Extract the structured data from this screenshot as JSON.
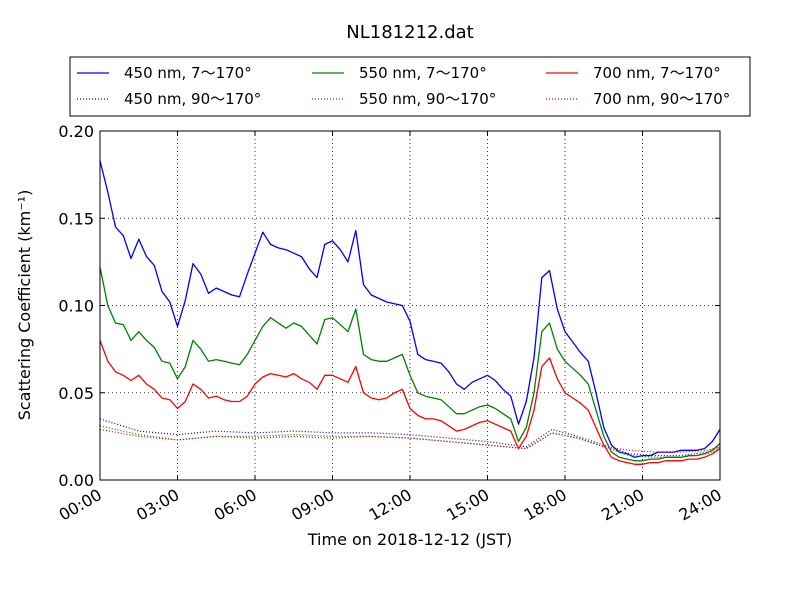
{
  "chart_data": {
    "type": "line",
    "title": "NL181212.dat",
    "xlabel": "Time on 2018-12-12 (JST)",
    "ylabel": "Scattering Coefficient (km⁻¹)",
    "xlim": [
      0,
      24
    ],
    "ylim": [
      0,
      0.2
    ],
    "grid": true,
    "legend_position": "top (outside plot), 3 columns",
    "x_tick_labels": [
      "00:00",
      "03:00",
      "06:00",
      "09:00",
      "12:00",
      "15:00",
      "18:00",
      "21:00",
      "24:00"
    ],
    "y_tick_labels": [
      "0.00",
      "0.05",
      "0.10",
      "0.15",
      "0.20"
    ],
    "series": [
      {
        "name": "450 nm, 7～170°",
        "color": "#0000ff",
        "style": "solid",
        "x": [
          0,
          0.3,
          0.6,
          0.9,
          1.2,
          1.5,
          1.8,
          2.1,
          2.4,
          2.7,
          3.0,
          3.3,
          3.6,
          3.9,
          4.2,
          4.5,
          4.8,
          5.1,
          5.4,
          5.7,
          6.0,
          6.3,
          6.6,
          6.9,
          7.2,
          7.5,
          7.8,
          8.1,
          8.4,
          8.7,
          9.0,
          9.3,
          9.6,
          9.9,
          10.2,
          10.5,
          10.8,
          11.1,
          11.4,
          11.7,
          12.0,
          12.3,
          12.6,
          12.9,
          13.2,
          13.5,
          13.8,
          14.1,
          14.4,
          14.7,
          15.0,
          15.3,
          15.6,
          15.9,
          16.2,
          16.5,
          16.8,
          17.1,
          17.4,
          17.7,
          18.0,
          18.3,
          18.6,
          18.9,
          19.2,
          19.5,
          19.8,
          20.1,
          20.4,
          20.7,
          21.0,
          21.3,
          21.6,
          21.9,
          22.2,
          22.5,
          22.8,
          23.1,
          23.4,
          23.7,
          24.0
        ],
        "y": [
          0.183,
          0.165,
          0.145,
          0.14,
          0.127,
          0.138,
          0.128,
          0.123,
          0.108,
          0.102,
          0.088,
          0.103,
          0.124,
          0.118,
          0.107,
          0.11,
          0.108,
          0.106,
          0.105,
          0.118,
          0.13,
          0.142,
          0.135,
          0.133,
          0.132,
          0.13,
          0.128,
          0.121,
          0.116,
          0.135,
          0.137,
          0.132,
          0.125,
          0.143,
          0.112,
          0.106,
          0.104,
          0.102,
          0.101,
          0.1,
          0.091,
          0.072,
          0.069,
          0.068,
          0.067,
          0.062,
          0.055,
          0.052,
          0.056,
          0.058,
          0.06,
          0.057,
          0.052,
          0.048,
          0.032,
          0.045,
          0.07,
          0.116,
          0.12,
          0.098,
          0.085,
          0.079,
          0.073,
          0.068,
          0.05,
          0.03,
          0.02,
          0.016,
          0.015,
          0.013,
          0.014,
          0.014,
          0.016,
          0.016,
          0.016,
          0.017,
          0.017,
          0.017,
          0.018,
          0.022,
          0.029
        ]
      },
      {
        "name": "450 nm, 90～170°",
        "color": "#0000ff",
        "style": "dotted",
        "x": [
          0,
          1.5,
          3.0,
          4.5,
          6.0,
          7.5,
          9.0,
          10.5,
          12.0,
          13.5,
          15.0,
          16.5,
          17.5,
          18.5,
          19.5,
          20.5,
          21.5,
          22.5,
          23.5,
          24.0
        ],
        "y": [
          0.035,
          0.028,
          0.026,
          0.028,
          0.027,
          0.028,
          0.027,
          0.027,
          0.026,
          0.024,
          0.022,
          0.019,
          0.029,
          0.025,
          0.02,
          0.015,
          0.014,
          0.014,
          0.016,
          0.019
        ]
      },
      {
        "name": "550 nm, 7～170°",
        "color": "#008000",
        "style": "solid",
        "x": [
          0,
          0.3,
          0.6,
          0.9,
          1.2,
          1.5,
          1.8,
          2.1,
          2.4,
          2.7,
          3.0,
          3.3,
          3.6,
          3.9,
          4.2,
          4.5,
          4.8,
          5.1,
          5.4,
          5.7,
          6.0,
          6.3,
          6.6,
          6.9,
          7.2,
          7.5,
          7.8,
          8.1,
          8.4,
          8.7,
          9.0,
          9.3,
          9.6,
          9.9,
          10.2,
          10.5,
          10.8,
          11.1,
          11.4,
          11.7,
          12.0,
          12.3,
          12.6,
          12.9,
          13.2,
          13.5,
          13.8,
          14.1,
          14.4,
          14.7,
          15.0,
          15.3,
          15.6,
          15.9,
          16.2,
          16.5,
          16.8,
          17.1,
          17.4,
          17.7,
          18.0,
          18.3,
          18.6,
          18.9,
          19.2,
          19.5,
          19.8,
          20.1,
          20.4,
          20.7,
          21.0,
          21.3,
          21.6,
          21.9,
          22.2,
          22.5,
          22.8,
          23.1,
          23.4,
          23.7,
          24.0
        ],
        "y": [
          0.122,
          0.1,
          0.09,
          0.089,
          0.08,
          0.085,
          0.08,
          0.076,
          0.068,
          0.067,
          0.058,
          0.065,
          0.08,
          0.075,
          0.068,
          0.069,
          0.068,
          0.067,
          0.066,
          0.072,
          0.08,
          0.088,
          0.093,
          0.09,
          0.087,
          0.09,
          0.088,
          0.083,
          0.078,
          0.092,
          0.093,
          0.089,
          0.085,
          0.098,
          0.072,
          0.069,
          0.068,
          0.068,
          0.07,
          0.072,
          0.06,
          0.05,
          0.048,
          0.047,
          0.046,
          0.042,
          0.038,
          0.038,
          0.04,
          0.042,
          0.043,
          0.041,
          0.038,
          0.035,
          0.022,
          0.03,
          0.05,
          0.085,
          0.09,
          0.075,
          0.068,
          0.064,
          0.06,
          0.055,
          0.04,
          0.025,
          0.016,
          0.013,
          0.012,
          0.011,
          0.011,
          0.012,
          0.012,
          0.013,
          0.013,
          0.013,
          0.014,
          0.014,
          0.015,
          0.017,
          0.021
        ]
      },
      {
        "name": "550 nm, 90～170°",
        "color": "#008000",
        "style": "dotted",
        "x": [
          0,
          1.5,
          3.0,
          4.5,
          6.0,
          7.5,
          9.0,
          10.5,
          12.0,
          13.5,
          15.0,
          16.5,
          17.5,
          18.5,
          19.5,
          20.5,
          21.5,
          22.5,
          23.5,
          24.0
        ],
        "y": [
          0.031,
          0.026,
          0.023,
          0.025,
          0.025,
          0.026,
          0.025,
          0.025,
          0.024,
          0.022,
          0.02,
          0.018,
          0.027,
          0.024,
          0.019,
          0.014,
          0.013,
          0.013,
          0.015,
          0.018
        ]
      },
      {
        "name": "700 nm, 7～170°",
        "color": "#ff0000",
        "style": "solid",
        "x": [
          0,
          0.3,
          0.6,
          0.9,
          1.2,
          1.5,
          1.8,
          2.1,
          2.4,
          2.7,
          3.0,
          3.3,
          3.6,
          3.9,
          4.2,
          4.5,
          4.8,
          5.1,
          5.4,
          5.7,
          6.0,
          6.3,
          6.6,
          6.9,
          7.2,
          7.5,
          7.8,
          8.1,
          8.4,
          8.7,
          9.0,
          9.3,
          9.6,
          9.9,
          10.2,
          10.5,
          10.8,
          11.1,
          11.4,
          11.7,
          12.0,
          12.3,
          12.6,
          12.9,
          13.2,
          13.5,
          13.8,
          14.1,
          14.4,
          14.7,
          15.0,
          15.3,
          15.6,
          15.9,
          16.2,
          16.5,
          16.8,
          17.1,
          17.4,
          17.7,
          18.0,
          18.3,
          18.6,
          18.9,
          19.2,
          19.5,
          19.8,
          20.1,
          20.4,
          20.7,
          21.0,
          21.3,
          21.6,
          21.9,
          22.2,
          22.5,
          22.8,
          23.1,
          23.4,
          23.7,
          24.0
        ],
        "y": [
          0.08,
          0.068,
          0.062,
          0.06,
          0.057,
          0.06,
          0.055,
          0.052,
          0.047,
          0.046,
          0.041,
          0.045,
          0.055,
          0.052,
          0.047,
          0.048,
          0.046,
          0.045,
          0.045,
          0.048,
          0.055,
          0.059,
          0.061,
          0.06,
          0.059,
          0.061,
          0.058,
          0.056,
          0.052,
          0.06,
          0.06,
          0.058,
          0.056,
          0.065,
          0.05,
          0.047,
          0.046,
          0.047,
          0.05,
          0.052,
          0.041,
          0.037,
          0.035,
          0.035,
          0.034,
          0.031,
          0.028,
          0.029,
          0.031,
          0.033,
          0.034,
          0.032,
          0.03,
          0.028,
          0.018,
          0.025,
          0.04,
          0.065,
          0.07,
          0.058,
          0.05,
          0.047,
          0.044,
          0.04,
          0.03,
          0.02,
          0.013,
          0.011,
          0.01,
          0.009,
          0.009,
          0.01,
          0.01,
          0.011,
          0.011,
          0.011,
          0.012,
          0.012,
          0.013,
          0.015,
          0.018
        ]
      },
      {
        "name": "700 nm, 90～170°",
        "color": "#ff0000",
        "style": "dotted",
        "x": [
          0,
          1.5,
          3.0,
          4.5,
          6.0,
          7.5,
          9.0,
          10.5,
          12.0,
          13.5,
          15.0,
          16.5,
          17.5,
          18.5,
          19.5,
          20.5,
          21.5,
          22.5,
          23.5,
          24.0
        ],
        "y": [
          0.029,
          0.025,
          0.023,
          0.025,
          0.024,
          0.025,
          0.024,
          0.025,
          0.024,
          0.022,
          0.02,
          0.018,
          0.027,
          0.024,
          0.019,
          0.017,
          0.016,
          0.016,
          0.017,
          0.019
        ]
      }
    ]
  }
}
